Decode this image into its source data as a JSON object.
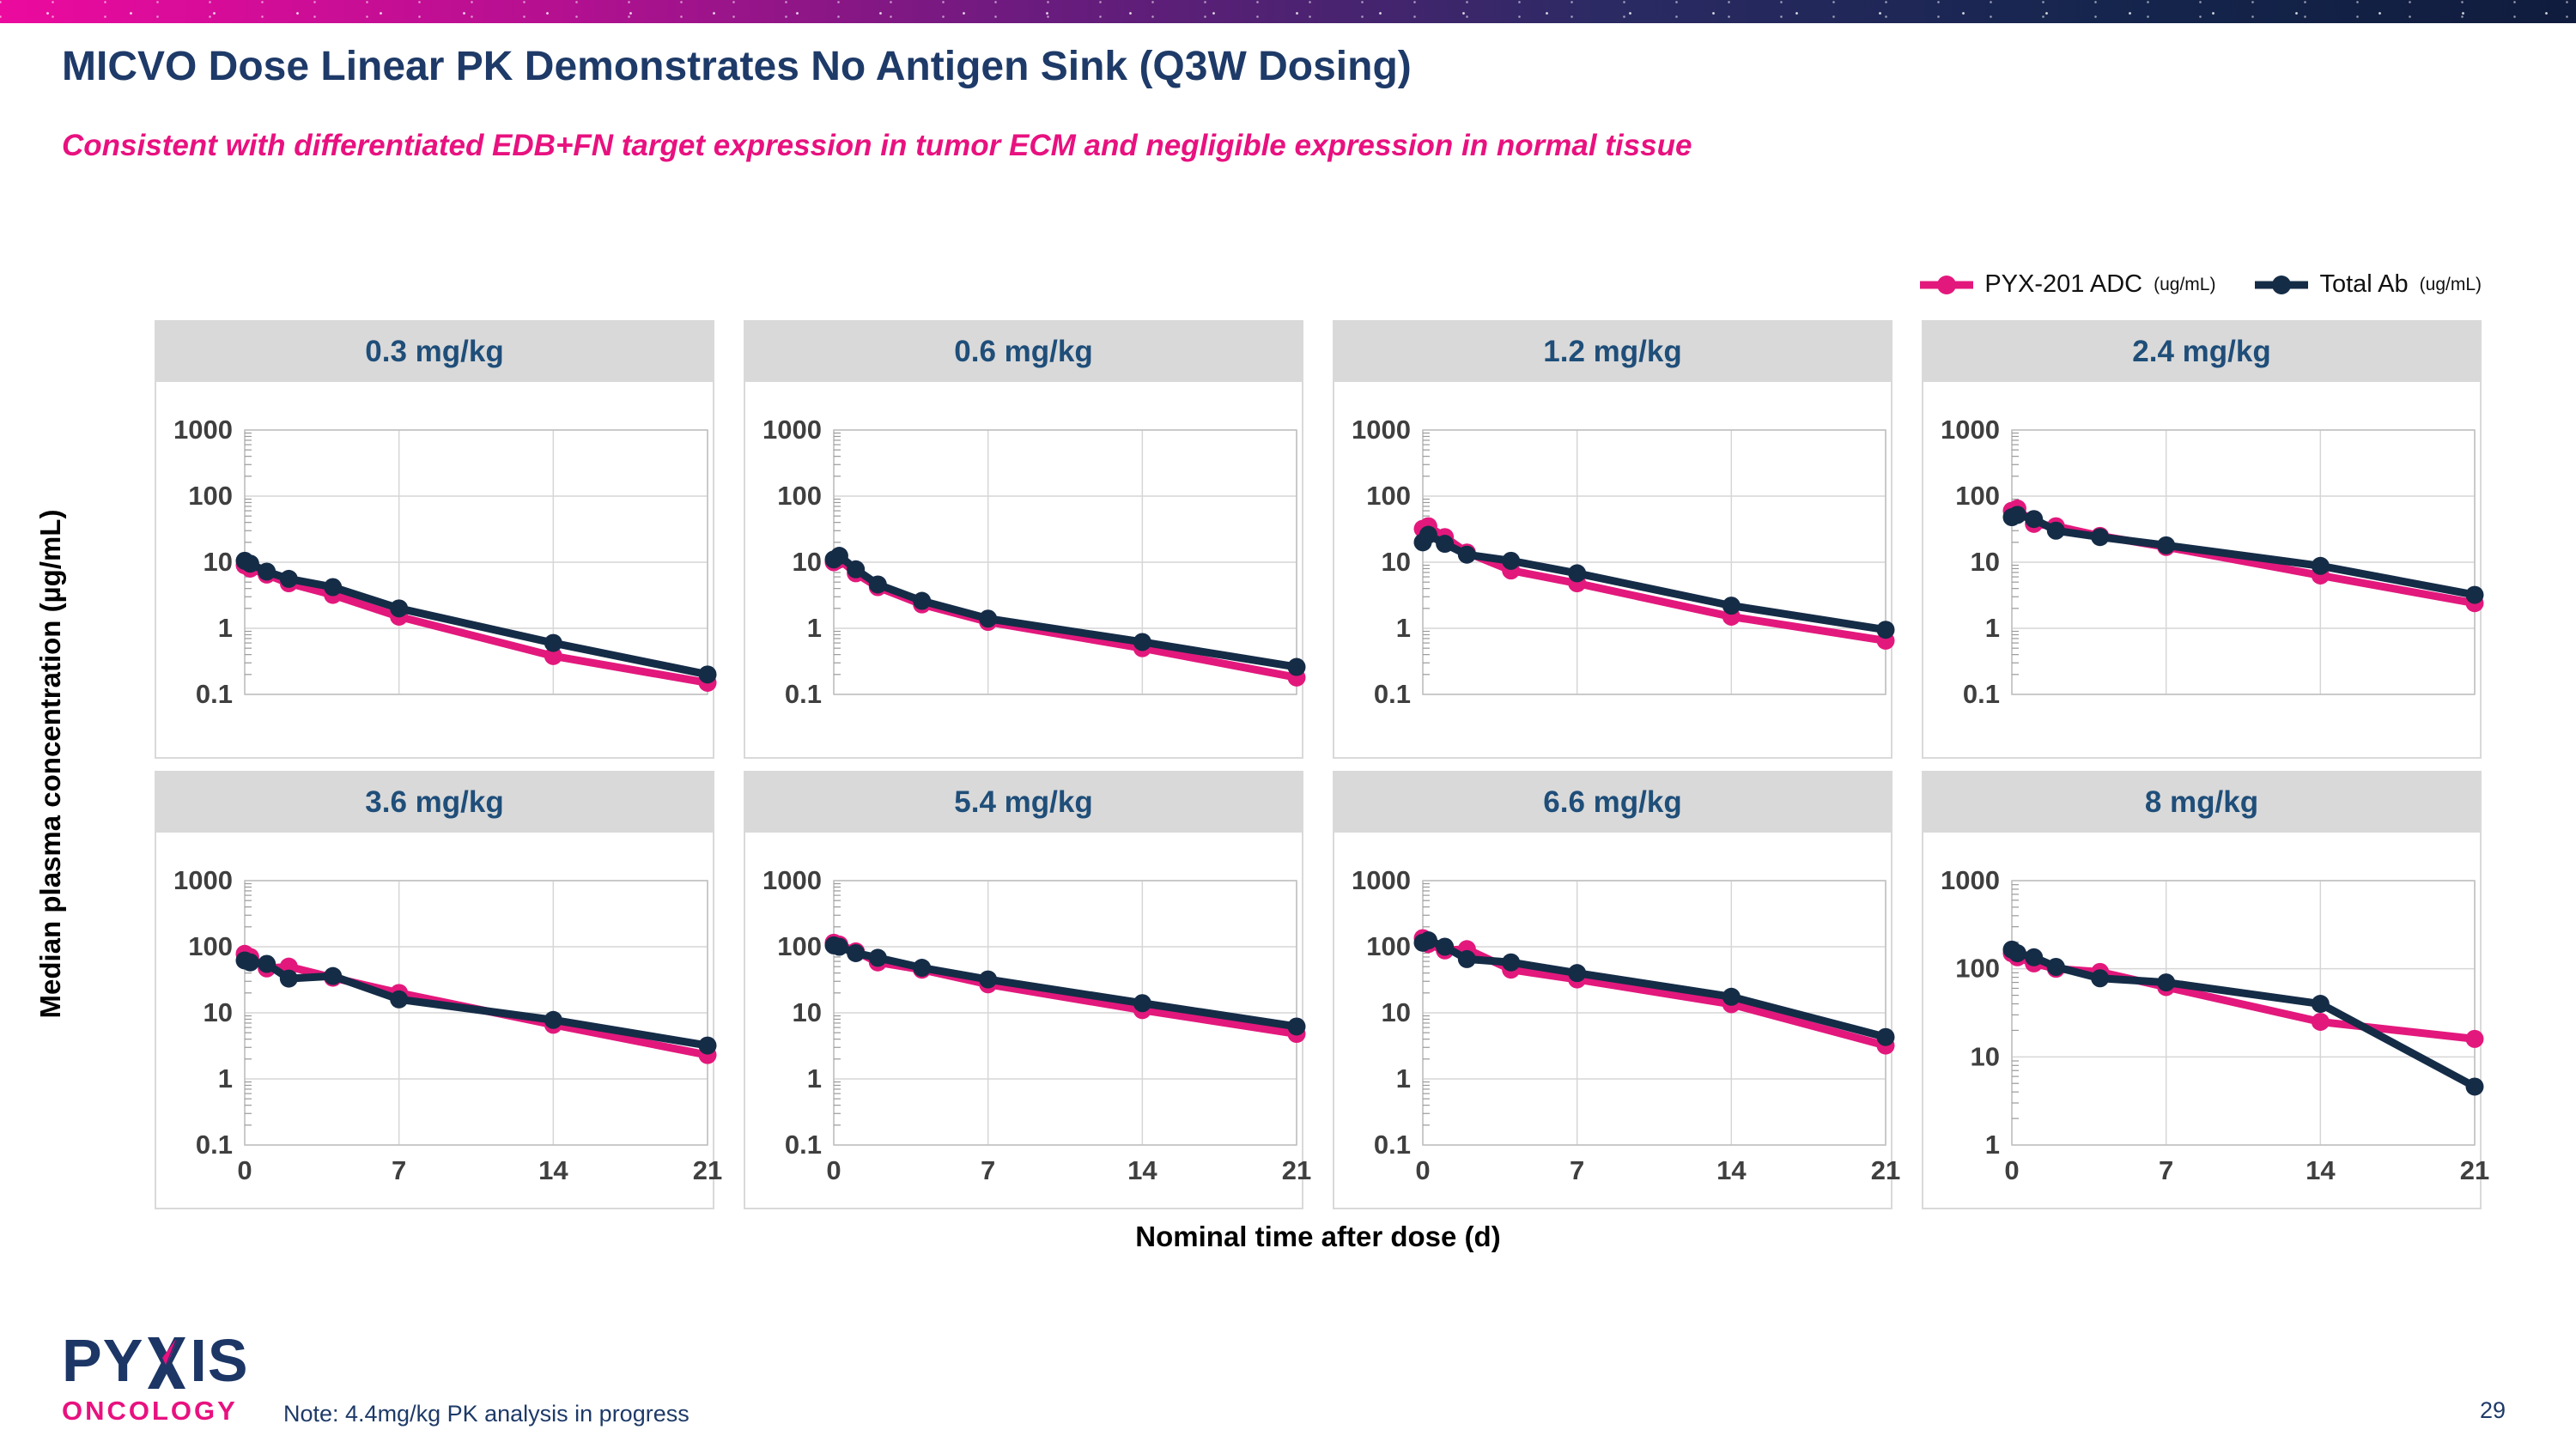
{
  "slide": {
    "title": "MICVO Dose Linear PK Demonstrates No Antigen Sink (Q3W Dosing)",
    "subtitle": "Consistent with differentiated EDB+FN target expression in tumor ECM and negligible expression in normal tissue",
    "note": "Note: 4.4mg/kg PK analysis in progress",
    "page_number": "29",
    "logo": {
      "line1_left": "PY",
      "line1_right": "IS",
      "line2": "ONCOLOGY"
    }
  },
  "colors": {
    "adc_pink": "#e3187c",
    "total_ab_navy": "#152c47",
    "chart_title_navy": "#1f4e79",
    "grid_gray": "#d6d6d6",
    "plot_border_gray": "#bfbfbf",
    "tick_label_gray": "#3f3f3f"
  },
  "legend": [
    {
      "label": "PYX-201 ADC",
      "unit": "(ug/mL)",
      "color": "#e3187c"
    },
    {
      "label": "Total Ab",
      "unit": "(ug/mL)",
      "color": "#152c47"
    }
  ],
  "axes": {
    "y_label": "Median plasma concentration (µg/mL)",
    "x_label": "Nominal time after dose (d)",
    "x_ticks": [
      0,
      7,
      14,
      21
    ],
    "x_range": [
      0,
      21
    ]
  },
  "chart_data": [
    {
      "type": "line",
      "title": "0.3 mg/kg",
      "ylim": [
        0.1,
        1000
      ],
      "yticks": [
        "1000",
        "100",
        "10",
        "1",
        "0.1"
      ],
      "show_x_labels": false,
      "x": [
        0,
        0.25,
        1,
        2,
        4,
        7,
        14,
        21
      ],
      "series": [
        {
          "name": "PYX-201 ADC (ug/mL)",
          "color": "#e3187c",
          "values": [
            9,
            8,
            6.5,
            4.8,
            3.2,
            1.5,
            0.38,
            0.15
          ]
        },
        {
          "name": "Total Ab (ug/mL)",
          "color": "#152c47",
          "values": [
            10.5,
            9.5,
            7.2,
            5.6,
            4.2,
            2.0,
            0.6,
            0.2
          ]
        }
      ]
    },
    {
      "type": "line",
      "title": "0.6 mg/kg",
      "ylim": [
        0.1,
        1000
      ],
      "yticks": [
        "1000",
        "100",
        "10",
        "1",
        "0.1"
      ],
      "show_x_labels": false,
      "x": [
        0,
        0.25,
        1,
        2,
        4,
        7,
        14,
        21
      ],
      "series": [
        {
          "name": "PYX-201 ADC (ug/mL)",
          "color": "#e3187c",
          "values": [
            10,
            11,
            6.8,
            4.2,
            2.3,
            1.25,
            0.5,
            0.18
          ]
        },
        {
          "name": "Total Ab (ug/mL)",
          "color": "#152c47",
          "values": [
            11,
            12.5,
            7.8,
            4.6,
            2.6,
            1.4,
            0.62,
            0.26
          ]
        }
      ]
    },
    {
      "type": "line",
      "title": "1.2 mg/kg",
      "ylim": [
        0.1,
        1000
      ],
      "yticks": [
        "1000",
        "100",
        "10",
        "1",
        "0.1"
      ],
      "show_x_labels": false,
      "x": [
        0,
        0.25,
        1,
        2,
        4,
        7,
        14,
        21
      ],
      "series": [
        {
          "name": "PYX-201 ADC (ug/mL)",
          "color": "#e3187c",
          "values": [
            32,
            35,
            24,
            14,
            7.5,
            4.8,
            1.5,
            0.65
          ]
        },
        {
          "name": "Total Ab (ug/mL)",
          "color": "#152c47",
          "values": [
            20,
            26,
            19,
            13,
            10.5,
            6.8,
            2.2,
            0.95
          ]
        }
      ]
    },
    {
      "type": "line",
      "title": "2.4 mg/kg",
      "ylim": [
        0.1,
        1000
      ],
      "yticks": [
        "1000",
        "100",
        "10",
        "1",
        "0.1"
      ],
      "show_x_labels": false,
      "x": [
        0,
        0.25,
        1,
        2,
        4,
        7,
        14,
        21
      ],
      "series": [
        {
          "name": "PYX-201 ADC (ug/mL)",
          "color": "#e3187c",
          "values": [
            60,
            65,
            38,
            35,
            25,
            17,
            6.3,
            2.4
          ]
        },
        {
          "name": "Total Ab (ug/mL)",
          "color": "#152c47",
          "values": [
            48,
            52,
            45,
            30,
            24,
            18,
            8.8,
            3.2
          ]
        }
      ]
    },
    {
      "type": "line",
      "title": "3.6 mg/kg",
      "ylim": [
        0.1,
        1000
      ],
      "yticks": [
        "1000",
        "100",
        "10",
        "1",
        "0.1"
      ],
      "show_x_labels": true,
      "x": [
        0,
        0.25,
        1,
        2,
        4,
        7,
        14,
        21
      ],
      "series": [
        {
          "name": "PYX-201 ADC (ug/mL)",
          "color": "#e3187c",
          "values": [
            78,
            70,
            47,
            50,
            34,
            20,
            6.6,
            2.3
          ]
        },
        {
          "name": "Total Ab (ug/mL)",
          "color": "#152c47",
          "values": [
            62,
            58,
            55,
            33,
            36,
            16,
            7.8,
            3.2
          ]
        }
      ]
    },
    {
      "type": "line",
      "title": "5.4 mg/kg",
      "ylim": [
        0.1,
        1000
      ],
      "yticks": [
        "1000",
        "100",
        "10",
        "1",
        "0.1"
      ],
      "show_x_labels": true,
      "x": [
        0,
        0.25,
        1,
        2,
        4,
        7,
        14,
        21
      ],
      "series": [
        {
          "name": "PYX-201 ADC (ug/mL)",
          "color": "#e3187c",
          "values": [
            115,
            108,
            85,
            58,
            45,
            27,
            11,
            4.8
          ]
        },
        {
          "name": "Total Ab (ug/mL)",
          "color": "#152c47",
          "values": [
            105,
            100,
            80,
            68,
            48,
            32,
            14,
            6.2
          ]
        }
      ]
    },
    {
      "type": "line",
      "title": "6.6 mg/kg",
      "ylim": [
        0.1,
        1000
      ],
      "yticks": [
        "1000",
        "100",
        "10",
        "1",
        "0.1"
      ],
      "show_x_labels": true,
      "x": [
        0,
        0.25,
        1,
        2,
        4,
        7,
        14,
        21
      ],
      "series": [
        {
          "name": "PYX-201 ADC (ug/mL)",
          "color": "#e3187c",
          "values": [
            135,
            110,
            88,
            92,
            45,
            32,
            13.5,
            3.2
          ]
        },
        {
          "name": "Total Ab (ug/mL)",
          "color": "#152c47",
          "values": [
            115,
            125,
            100,
            65,
            58,
            40,
            17.5,
            4.3
          ]
        }
      ]
    },
    {
      "type": "line",
      "title": "8 mg/kg",
      "ylim": [
        1,
        1000
      ],
      "yticks": [
        "1000",
        "100",
        "10",
        "1"
      ],
      "show_x_labels": true,
      "x": [
        0,
        0.25,
        1,
        2,
        4,
        7,
        14,
        21
      ],
      "series": [
        {
          "name": "PYX-201 ADC (ug/mL)",
          "color": "#e3187c",
          "values": [
            150,
            135,
            115,
            100,
            92,
            62,
            25,
            16
          ]
        },
        {
          "name": "Total Ab (ug/mL)",
          "color": "#152c47",
          "values": [
            165,
            150,
            135,
            105,
            78,
            70,
            40,
            4.6
          ]
        }
      ]
    }
  ],
  "layout": {
    "panel_cols_x": [
      180,
      866,
      1552,
      2238
    ],
    "panel_rows_y": [
      373,
      898
    ]
  }
}
